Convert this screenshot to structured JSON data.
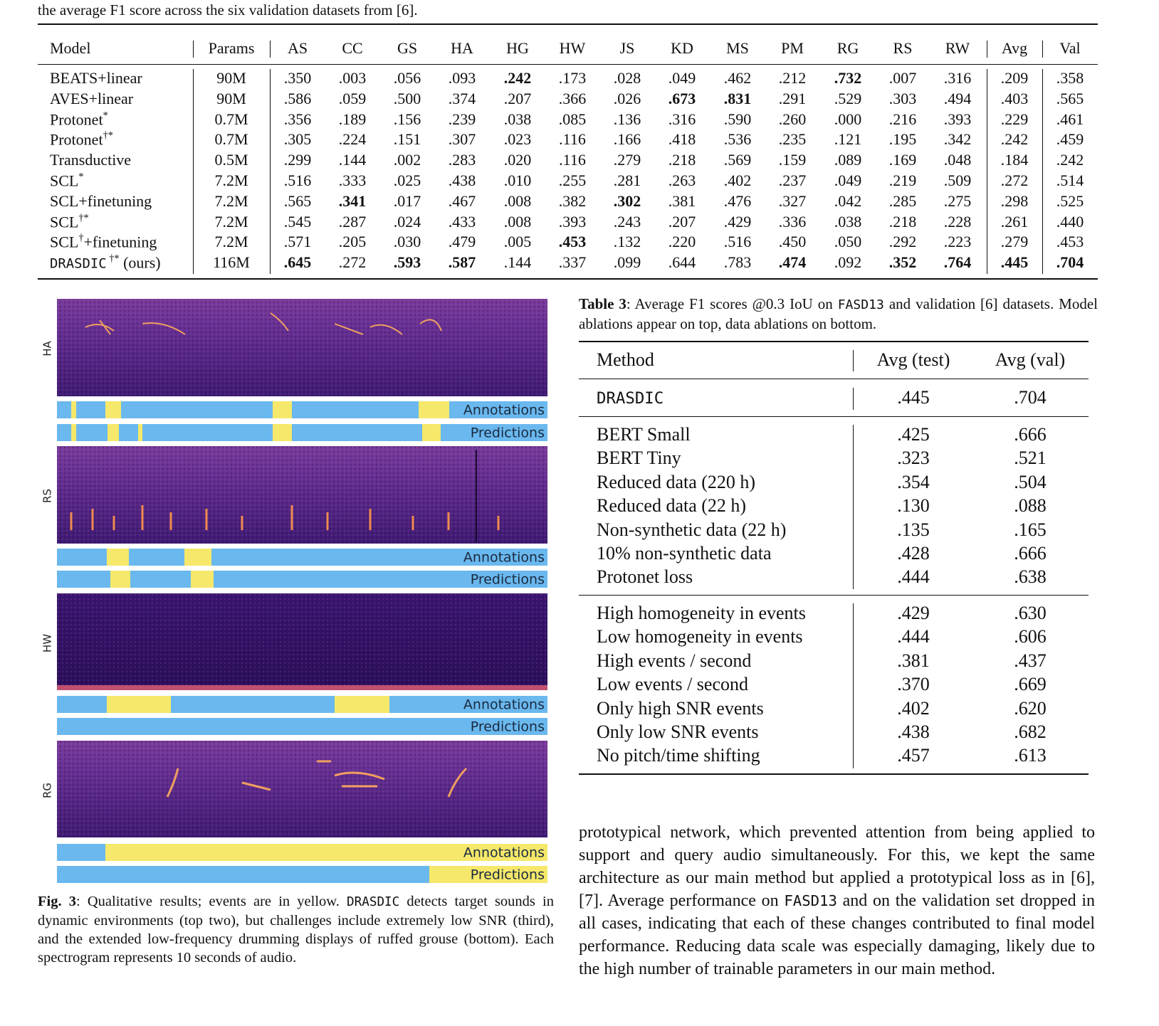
{
  "caption_top": "the average F1 score across the six validation datasets from [6].",
  "table1": {
    "columns": [
      "Model",
      "Params",
      "AS",
      "CC",
      "GS",
      "HA",
      "HG",
      "HW",
      "JS",
      "KD",
      "MS",
      "PM",
      "RG",
      "RS",
      "RW",
      "Avg",
      "Val"
    ],
    "rows": [
      {
        "model": [
          {
            "text": "BEATS+linear"
          }
        ],
        "cells": [
          "90M",
          ".350",
          ".003",
          ".056",
          ".093",
          ".242",
          ".173",
          ".028",
          ".049",
          ".462",
          ".212",
          ".732",
          ".007",
          ".316",
          ".209",
          ".358"
        ],
        "bold": [
          5,
          11
        ]
      },
      {
        "model": [
          {
            "text": "AVES+linear"
          }
        ],
        "cells": [
          "90M",
          ".586",
          ".059",
          ".500",
          ".374",
          ".207",
          ".366",
          ".026",
          ".673",
          ".831",
          ".291",
          ".529",
          ".303",
          ".494",
          ".403",
          ".565"
        ],
        "bold": [
          8,
          9
        ]
      },
      {
        "model": [
          {
            "text": "Protonet"
          },
          {
            "text": "*",
            "style": "sup"
          }
        ],
        "cells": [
          "0.7M",
          ".356",
          ".189",
          ".156",
          ".239",
          ".038",
          ".085",
          ".136",
          ".316",
          ".590",
          ".260",
          ".000",
          ".216",
          ".393",
          ".229",
          ".461"
        ],
        "bold": []
      },
      {
        "model": [
          {
            "text": "Protonet"
          },
          {
            "text": "†*",
            "style": "sup"
          }
        ],
        "cells": [
          "0.7M",
          ".305",
          ".224",
          ".151",
          ".307",
          ".023",
          ".116",
          ".166",
          ".418",
          ".536",
          ".235",
          ".121",
          ".195",
          ".342",
          ".242",
          ".459"
        ],
        "bold": []
      },
      {
        "model": [
          {
            "text": "Transductive"
          }
        ],
        "cells": [
          "0.5M",
          ".299",
          ".144",
          ".002",
          ".283",
          ".020",
          ".116",
          ".279",
          ".218",
          ".569",
          ".159",
          ".089",
          ".169",
          ".048",
          ".184",
          ".242"
        ],
        "bold": []
      },
      {
        "model": [
          {
            "text": "SCL"
          },
          {
            "text": "*",
            "style": "sup"
          }
        ],
        "cells": [
          "7.2M",
          ".516",
          ".333",
          ".025",
          ".438",
          ".010",
          ".255",
          ".281",
          ".263",
          ".402",
          ".237",
          ".049",
          ".219",
          ".509",
          ".272",
          ".514"
        ],
        "bold": []
      },
      {
        "model": [
          {
            "text": "SCL+finetuning"
          }
        ],
        "cells": [
          "7.2M",
          ".565",
          ".341",
          ".017",
          ".467",
          ".008",
          ".382",
          ".302",
          ".381",
          ".476",
          ".327",
          ".042",
          ".285",
          ".275",
          ".298",
          ".525"
        ],
        "bold": [
          2,
          7
        ]
      },
      {
        "model": [
          {
            "text": "SCL"
          },
          {
            "text": "†*",
            "style": "sup"
          }
        ],
        "cells": [
          "7.2M",
          ".545",
          ".287",
          ".024",
          ".433",
          ".008",
          ".393",
          ".243",
          ".207",
          ".429",
          ".336",
          ".038",
          ".218",
          ".228",
          ".261",
          ".440"
        ],
        "bold": []
      },
      {
        "model": [
          {
            "text": "SCL"
          },
          {
            "text": "†",
            "style": "sup"
          },
          {
            "text": "+finetuning"
          }
        ],
        "cells": [
          "7.2M",
          ".571",
          ".205",
          ".030",
          ".479",
          ".005",
          ".453",
          ".132",
          ".220",
          ".516",
          ".450",
          ".050",
          ".292",
          ".223",
          ".279",
          ".453"
        ],
        "bold": [
          6
        ]
      },
      {
        "model": [
          {
            "text": "DRASDIC",
            "style": "mono"
          },
          {
            "text": " †*",
            "style": "sup"
          },
          {
            "text": " (ours)"
          }
        ],
        "cells": [
          "116M",
          ".645",
          ".272",
          ".593",
          ".587",
          ".144",
          ".337",
          ".099",
          ".644",
          ".783",
          ".474",
          ".092",
          ".352",
          ".764",
          ".445",
          ".704"
        ],
        "bold": [
          1,
          3,
          4,
          10,
          12,
          13,
          14,
          15
        ]
      }
    ]
  },
  "figure": {
    "panels": [
      {
        "label": "HA",
        "tracks": [
          "Annotations",
          "Predictions"
        ]
      },
      {
        "label": "RS",
        "tracks": [
          "Annotations",
          "Predictions"
        ]
      },
      {
        "label": "HW",
        "tracks": [
          "Annotations",
          "Predictions"
        ]
      },
      {
        "label": "RG",
        "tracks": [
          "Annotations",
          "Predictions"
        ]
      }
    ],
    "caption": [
      {
        "text": "Fig. 3",
        "style": "bold"
      },
      {
        "text": ": Qualitative results; events are in yellow. "
      },
      {
        "text": "DRASDIC",
        "style": "mono"
      },
      {
        "text": " detects target sounds in dynamic environments (top two), but challenges include extremely low SNR (third), and the extended low-frequency drumming displays of ruffed grouse (bottom). Each spectrogram represents 10 seconds of audio."
      }
    ]
  },
  "table3": {
    "caption": [
      {
        "text": "Table 3",
        "style": "bold"
      },
      {
        "text": ": Average F1 scores @0.3 IoU on "
      },
      {
        "text": "FASD13",
        "style": "mono"
      },
      {
        "text": " and validation [6] datasets. Model ablations appear on top, data ablations on bottom."
      }
    ],
    "header": [
      "Method",
      "Avg (test)",
      "Avg (val)"
    ],
    "groups": [
      [
        {
          "method": [
            {
              "text": "DRASDIC",
              "style": "mono"
            }
          ],
          "test": ".445",
          "val": ".704"
        }
      ],
      [
        {
          "method": [
            {
              "text": "BERT Small"
            }
          ],
          "test": ".425",
          "val": ".666"
        },
        {
          "method": [
            {
              "text": "BERT Tiny"
            }
          ],
          "test": ".323",
          "val": ".521"
        },
        {
          "method": [
            {
              "text": "Reduced data (220 h)"
            }
          ],
          "test": ".354",
          "val": ".504"
        },
        {
          "method": [
            {
              "text": "Reduced data (22 h)"
            }
          ],
          "test": ".130",
          "val": ".088"
        },
        {
          "method": [
            {
              "text": "Non-synthetic data (22 h)"
            }
          ],
          "test": ".135",
          "val": ".165"
        },
        {
          "method": [
            {
              "text": "10% non-synthetic data"
            }
          ],
          "test": ".428",
          "val": ".666"
        },
        {
          "method": [
            {
              "text": "Protonet loss"
            }
          ],
          "test": ".444",
          "val": ".638"
        }
      ],
      [
        {
          "method": [
            {
              "text": "High homogeneity in events"
            }
          ],
          "test": ".429",
          "val": ".630"
        },
        {
          "method": [
            {
              "text": "Low homogeneity in events"
            }
          ],
          "test": ".444",
          "val": ".606"
        },
        {
          "method": [
            {
              "text": "High events / second"
            }
          ],
          "test": ".381",
          "val": ".437"
        },
        {
          "method": [
            {
              "text": "Low events / second"
            }
          ],
          "test": ".370",
          "val": ".669"
        },
        {
          "method": [
            {
              "text": "Only high SNR events"
            }
          ],
          "test": ".402",
          "val": ".620"
        },
        {
          "method": [
            {
              "text": "Only low SNR events"
            }
          ],
          "test": ".438",
          "val": ".682"
        },
        {
          "method": [
            {
              "text": "No pitch/time shifting"
            }
          ],
          "test": ".457",
          "val": ".613"
        }
      ]
    ]
  },
  "body": [
    {
      "text": "prototypical network, which prevented attention from being applied to support and query audio simultaneously. For this, we kept the same architecture as our main method but applied a prototypical loss as in [6], [7]. Average performance on "
    },
    {
      "text": "FASD13",
      "style": "mono"
    },
    {
      "text": " and on the validation set dropped in all cases, indicating that each of these changes contributed to final model performance. Reducing data scale was especially damaging, likely due to the high number of trainable parameters in our main method."
    }
  ]
}
